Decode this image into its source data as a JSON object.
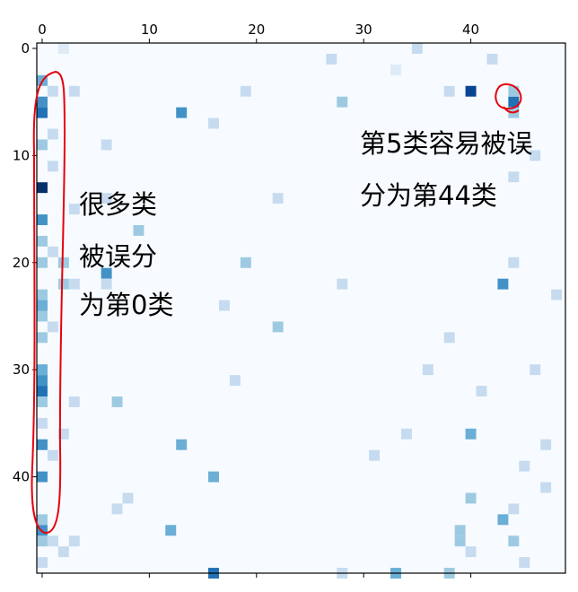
{
  "chart_data": {
    "type": "heatmap",
    "title": "",
    "xlabel": "",
    "ylabel": "",
    "xlim": [
      0,
      49
    ],
    "ylim": [
      0,
      49
    ],
    "x_ticks": [
      "0",
      "10",
      "20",
      "30",
      "40"
    ],
    "y_ticks": [
      "0",
      "10",
      "20",
      "30",
      "40"
    ],
    "colormap": "Blues",
    "colors": {
      "background": "#f7fbff",
      "level_1": "#deebf7",
      "level_2": "#c6dbef",
      "level_3": "#9ecae1",
      "level_4": "#6baed6",
      "level_5": "#4292c6",
      "level_6": "#2171b5",
      "level_7": "#084594",
      "level_8": "#08306b",
      "annotation": "#e8000b"
    },
    "cells": [
      {
        "row": 3,
        "col": 0,
        "level": 4
      },
      {
        "row": 5,
        "col": 0,
        "level": 5
      },
      {
        "row": 6,
        "col": 0,
        "level": 6
      },
      {
        "row": 9,
        "col": 0,
        "level": 3
      },
      {
        "row": 13,
        "col": 0,
        "level": 8
      },
      {
        "row": 16,
        "col": 0,
        "level": 5
      },
      {
        "row": 18,
        "col": 0,
        "level": 3
      },
      {
        "row": 20,
        "col": 0,
        "level": 3
      },
      {
        "row": 23,
        "col": 0,
        "level": 3
      },
      {
        "row": 24,
        "col": 0,
        "level": 4
      },
      {
        "row": 25,
        "col": 0,
        "level": 3
      },
      {
        "row": 27,
        "col": 0,
        "level": 3
      },
      {
        "row": 30,
        "col": 0,
        "level": 4
      },
      {
        "row": 31,
        "col": 0,
        "level": 5
      },
      {
        "row": 32,
        "col": 0,
        "level": 6
      },
      {
        "row": 33,
        "col": 0,
        "level": 3
      },
      {
        "row": 35,
        "col": 0,
        "level": 2
      },
      {
        "row": 37,
        "col": 0,
        "level": 5
      },
      {
        "row": 40,
        "col": 0,
        "level": 5
      },
      {
        "row": 44,
        "col": 0,
        "level": 3
      },
      {
        "row": 45,
        "col": 0,
        "level": 5
      },
      {
        "row": 46,
        "col": 0,
        "level": 3
      },
      {
        "row": 48,
        "col": 0,
        "level": 2
      },
      {
        "row": 4,
        "col": 1,
        "level": 2
      },
      {
        "row": 8,
        "col": 1,
        "level": 2
      },
      {
        "row": 11,
        "col": 1,
        "level": 2
      },
      {
        "row": 19,
        "col": 1,
        "level": 2
      },
      {
        "row": 26,
        "col": 1,
        "level": 2
      },
      {
        "row": 38,
        "col": 1,
        "level": 2
      },
      {
        "row": 46,
        "col": 1,
        "level": 2
      },
      {
        "row": 20,
        "col": 2,
        "level": 3
      },
      {
        "row": 22,
        "col": 2,
        "level": 3
      },
      {
        "row": 36,
        "col": 2,
        "level": 2
      },
      {
        "row": 47,
        "col": 2,
        "level": 2
      },
      {
        "row": 0,
        "col": 2,
        "level": 1
      },
      {
        "row": 4,
        "col": 3,
        "level": 2
      },
      {
        "row": 15,
        "col": 3,
        "level": 2
      },
      {
        "row": 22,
        "col": 3,
        "level": 2
      },
      {
        "row": 33,
        "col": 3,
        "level": 2
      },
      {
        "row": 46,
        "col": 3,
        "level": 2
      },
      {
        "row": 21,
        "col": 6,
        "level": 5
      },
      {
        "row": 22,
        "col": 6,
        "level": 2
      },
      {
        "row": 9,
        "col": 6,
        "level": 2
      },
      {
        "row": 14,
        "col": 6,
        "level": 2
      },
      {
        "row": 33,
        "col": 7,
        "level": 3
      },
      {
        "row": 43,
        "col": 7,
        "level": 2
      },
      {
        "row": 17,
        "col": 9,
        "level": 3
      },
      {
        "row": 42,
        "col": 8,
        "level": 2
      },
      {
        "row": 6,
        "col": 13,
        "level": 5
      },
      {
        "row": 37,
        "col": 13,
        "level": 4
      },
      {
        "row": 45,
        "col": 12,
        "level": 4
      },
      {
        "row": 40,
        "col": 16,
        "level": 4
      },
      {
        "row": 49,
        "col": 16,
        "level": 6
      },
      {
        "row": 7,
        "col": 16,
        "level": 2
      },
      {
        "row": 20,
        "col": 19,
        "level": 3
      },
      {
        "row": 4,
        "col": 19,
        "level": 2
      },
      {
        "row": 26,
        "col": 22,
        "level": 3
      },
      {
        "row": 24,
        "col": 17,
        "level": 2
      },
      {
        "row": 31,
        "col": 18,
        "level": 2
      },
      {
        "row": 14,
        "col": 22,
        "level": 2
      },
      {
        "row": 5,
        "col": 28,
        "level": 3
      },
      {
        "row": 1,
        "col": 27,
        "level": 2
      },
      {
        "row": 22,
        "col": 28,
        "level": 2
      },
      {
        "row": 38,
        "col": 31,
        "level": 2
      },
      {
        "row": 49,
        "col": 28,
        "level": 2
      },
      {
        "row": 4,
        "col": 40,
        "level": 7
      },
      {
        "row": 5,
        "col": 44,
        "level": 6
      },
      {
        "row": 4,
        "col": 44,
        "level": 3
      },
      {
        "row": 6,
        "col": 44,
        "level": 3
      },
      {
        "row": 22,
        "col": 43,
        "level": 5
      },
      {
        "row": 36,
        "col": 40,
        "level": 4
      },
      {
        "row": 42,
        "col": 40,
        "level": 3
      },
      {
        "row": 45,
        "col": 39,
        "level": 3
      },
      {
        "row": 44,
        "col": 43,
        "level": 4
      },
      {
        "row": 46,
        "col": 44,
        "level": 3
      },
      {
        "row": 46,
        "col": 39,
        "level": 3
      },
      {
        "row": 47,
        "col": 40,
        "level": 2
      },
      {
        "row": 49,
        "col": 33,
        "level": 4
      },
      {
        "row": 49,
        "col": 38,
        "level": 3
      },
      {
        "row": 0,
        "col": 35,
        "level": 2
      },
      {
        "row": 4,
        "col": 38,
        "level": 2
      },
      {
        "row": 20,
        "col": 44,
        "level": 2
      },
      {
        "row": 37,
        "col": 47,
        "level": 2
      },
      {
        "row": 39,
        "col": 45,
        "level": 2
      },
      {
        "row": 41,
        "col": 47,
        "level": 2
      },
      {
        "row": 27,
        "col": 38,
        "level": 2
      },
      {
        "row": 23,
        "col": 48,
        "level": 2
      },
      {
        "row": 2,
        "col": 33,
        "level": 1
      },
      {
        "row": 1,
        "col": 42,
        "level": 2
      },
      {
        "row": 12,
        "col": 44,
        "level": 2
      },
      {
        "row": 10,
        "col": 46,
        "level": 2
      },
      {
        "row": 32,
        "col": 41,
        "level": 2
      },
      {
        "row": 30,
        "col": 46,
        "level": 2
      },
      {
        "row": 43,
        "col": 44,
        "level": 2
      },
      {
        "row": 48,
        "col": 45,
        "level": 2
      },
      {
        "row": 30,
        "col": 36,
        "level": 2
      },
      {
        "row": 36,
        "col": 34,
        "level": 2
      }
    ],
    "annotations": [
      {
        "id": "col0",
        "lines": [
          "很多类",
          "被误分",
          "为第0类"
        ]
      },
      {
        "id": "c5",
        "lines": [
          "第5类容易被误",
          "分为第44类"
        ]
      }
    ]
  }
}
